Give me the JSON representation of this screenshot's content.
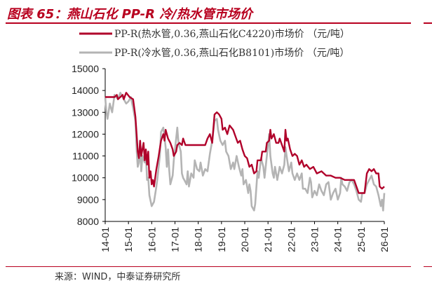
{
  "header": {
    "title": "图表 65：燕山石化 PP-R 冷/热水管市场价"
  },
  "footer": {
    "source": "来源：WIND，中泰证券研究所"
  },
  "chart_data": {
    "type": "line",
    "title": "图表 65：燕山石化 PP-R 冷/热水管市场价",
    "xlabel": "",
    "ylabel": "",
    "xlim": [
      2014.0,
      2026.0
    ],
    "ylim": [
      8000,
      15000
    ],
    "y_ticks": [
      8000,
      9000,
      10000,
      11000,
      12000,
      13000,
      14000,
      15000
    ],
    "x_ticks": [
      "14-01",
      "15-01",
      "16-01",
      "17-01",
      "18-01",
      "19-01",
      "20-01",
      "21-01",
      "22-01",
      "23-01",
      "24-01",
      "25-01",
      "26-01"
    ],
    "grid": false,
    "legend_position": "top",
    "series": [
      {
        "name": "PP-R(热水管,0.36,燕山石化C4220)市场价 （元/吨）",
        "color": "#b0002a",
        "points": [
          [
            2014.0,
            13700
          ],
          [
            2014.4,
            13700
          ],
          [
            2014.5,
            13800
          ],
          [
            2014.55,
            13600
          ],
          [
            2014.75,
            13800
          ],
          [
            2014.8,
            13600
          ],
          [
            2014.9,
            13900
          ],
          [
            2015.05,
            13700
          ],
          [
            2015.2,
            13600
          ],
          [
            2015.3,
            12800
          ],
          [
            2015.35,
            12000
          ],
          [
            2015.4,
            11200
          ],
          [
            2015.45,
            10900
          ],
          [
            2015.5,
            11700
          ],
          [
            2015.55,
            11000
          ],
          [
            2015.65,
            11600
          ],
          [
            2015.7,
            10800
          ],
          [
            2015.75,
            11300
          ],
          [
            2015.8,
            10600
          ],
          [
            2015.85,
            11200
          ],
          [
            2015.9,
            10000
          ],
          [
            2015.95,
            10300
          ],
          [
            2016.0,
            9700
          ],
          [
            2016.05,
            9900
          ],
          [
            2016.1,
            9600
          ],
          [
            2016.2,
            10400
          ],
          [
            2016.3,
            11000
          ],
          [
            2016.4,
            11700
          ],
          [
            2016.5,
            12000
          ],
          [
            2016.55,
            11700
          ],
          [
            2016.6,
            12200
          ],
          [
            2016.7,
            11800
          ],
          [
            2016.8,
            11600
          ],
          [
            2016.9,
            11300
          ],
          [
            2016.95,
            11000
          ],
          [
            2017.05,
            11200
          ],
          [
            2017.1,
            11500
          ],
          [
            2017.2,
            11600
          ],
          [
            2017.3,
            11500
          ],
          [
            2017.35,
            11800
          ],
          [
            2017.45,
            11500
          ],
          [
            2017.6,
            11500
          ],
          [
            2018.3,
            11500
          ],
          [
            2018.4,
            11800
          ],
          [
            2018.5,
            12000
          ],
          [
            2018.6,
            11600
          ],
          [
            2018.7,
            12900
          ],
          [
            2018.8,
            13000
          ],
          [
            2018.9,
            12900
          ],
          [
            2019.0,
            12700
          ],
          [
            2019.05,
            12200
          ],
          [
            2019.15,
            12300
          ],
          [
            2019.25,
            12000
          ],
          [
            2019.35,
            12400
          ],
          [
            2019.5,
            12200
          ],
          [
            2019.6,
            11900
          ],
          [
            2019.7,
            11600
          ],
          [
            2019.8,
            11700
          ],
          [
            2019.9,
            11300
          ],
          [
            2020.0,
            11000
          ],
          [
            2020.1,
            10900
          ],
          [
            2020.2,
            10500
          ],
          [
            2020.3,
            10600
          ],
          [
            2020.4,
            10200
          ],
          [
            2020.5,
            10300
          ],
          [
            2020.55,
            10800
          ],
          [
            2020.7,
            10800
          ],
          [
            2020.75,
            11200
          ],
          [
            2020.9,
            11200
          ],
          [
            2020.95,
            11600
          ],
          [
            2021.05,
            11700
          ],
          [
            2021.1,
            12200
          ],
          [
            2021.15,
            11800
          ],
          [
            2021.25,
            12000
          ],
          [
            2021.35,
            11600
          ],
          [
            2021.45,
            11600
          ],
          [
            2021.5,
            11800
          ],
          [
            2021.6,
            11500
          ],
          [
            2021.7,
            11200
          ],
          [
            2021.75,
            12200
          ],
          [
            2021.8,
            11700
          ],
          [
            2021.85,
            11800
          ],
          [
            2021.95,
            11300
          ],
          [
            2022.05,
            11000
          ],
          [
            2022.15,
            11100
          ],
          [
            2022.25,
            11000
          ],
          [
            2022.35,
            10600
          ],
          [
            2022.45,
            10800
          ],
          [
            2022.55,
            10500
          ],
          [
            2022.65,
            10600
          ],
          [
            2022.8,
            10400
          ],
          [
            2022.95,
            10500
          ],
          [
            2023.1,
            10200
          ],
          [
            2023.3,
            10300
          ],
          [
            2023.5,
            10100
          ],
          [
            2023.7,
            10100
          ],
          [
            2023.9,
            10000
          ],
          [
            2024.1,
            10000
          ],
          [
            2024.3,
            9900
          ],
          [
            2024.5,
            9900
          ],
          [
            2024.7,
            9900
          ],
          [
            2024.8,
            9600
          ],
          [
            2024.9,
            9300
          ],
          [
            2025.15,
            9300
          ],
          [
            2025.25,
            10200
          ],
          [
            2025.35,
            10400
          ],
          [
            2025.45,
            10300
          ],
          [
            2025.55,
            10400
          ],
          [
            2025.65,
            10200
          ],
          [
            2025.75,
            10200
          ],
          [
            2025.8,
            9600
          ],
          [
            2025.9,
            9500
          ],
          [
            2026.0,
            9600
          ]
        ]
      },
      {
        "name": "PP-R(冷水管,0.36,燕山石化B8101)市场价 （元/吨）",
        "color": "#b4b4b4",
        "points": [
          [
            2014.0,
            13700
          ],
          [
            2014.05,
            13000
          ],
          [
            2014.1,
            12700
          ],
          [
            2014.2,
            13400
          ],
          [
            2014.3,
            13000
          ],
          [
            2014.4,
            13800
          ],
          [
            2014.55,
            13600
          ],
          [
            2014.65,
            13900
          ],
          [
            2014.8,
            13600
          ],
          [
            2014.9,
            13400
          ],
          [
            2015.0,
            13500
          ],
          [
            2015.1,
            13700
          ],
          [
            2015.2,
            13200
          ],
          [
            2015.3,
            12600
          ],
          [
            2015.35,
            11300
          ],
          [
            2015.4,
            10500
          ],
          [
            2015.45,
            10700
          ],
          [
            2015.5,
            11700
          ],
          [
            2015.55,
            10300
          ],
          [
            2015.6,
            11000
          ],
          [
            2015.7,
            10700
          ],
          [
            2015.75,
            11100
          ],
          [
            2015.8,
            9900
          ],
          [
            2015.85,
            10000
          ],
          [
            2015.9,
            9200
          ],
          [
            2016.0,
            8700
          ],
          [
            2016.1,
            8900
          ],
          [
            2016.2,
            9600
          ],
          [
            2016.25,
            10000
          ],
          [
            2016.35,
            11000
          ],
          [
            2016.4,
            12100
          ],
          [
            2016.5,
            12300
          ],
          [
            2016.6,
            11400
          ],
          [
            2016.65,
            10500
          ],
          [
            2016.7,
            11300
          ],
          [
            2016.75,
            10400
          ],
          [
            2016.8,
            9700
          ],
          [
            2016.9,
            10100
          ],
          [
            2016.95,
            10800
          ],
          [
            2017.05,
            11800
          ],
          [
            2017.1,
            12300
          ],
          [
            2017.15,
            11600
          ],
          [
            2017.25,
            11200
          ],
          [
            2017.3,
            10200
          ],
          [
            2017.35,
            10000
          ],
          [
            2017.4,
            9900
          ],
          [
            2017.5,
            9700
          ],
          [
            2017.55,
            10300
          ],
          [
            2017.6,
            9600
          ],
          [
            2017.7,
            10200
          ],
          [
            2017.8,
            10000
          ],
          [
            2017.85,
            10800
          ],
          [
            2017.95,
            10400
          ],
          [
            2018.05,
            10300
          ],
          [
            2018.1,
            10700
          ],
          [
            2018.2,
            10100
          ],
          [
            2018.3,
            10400
          ],
          [
            2018.4,
            10300
          ],
          [
            2018.5,
            11100
          ],
          [
            2018.6,
            11700
          ],
          [
            2018.7,
            12600
          ],
          [
            2018.8,
            12700
          ],
          [
            2018.85,
            12200
          ],
          [
            2018.95,
            11700
          ],
          [
            2019.05,
            11500
          ],
          [
            2019.15,
            11700
          ],
          [
            2019.2,
            11200
          ],
          [
            2019.3,
            11000
          ],
          [
            2019.4,
            10400
          ],
          [
            2019.5,
            10700
          ],
          [
            2019.55,
            10400
          ],
          [
            2019.65,
            11000
          ],
          [
            2019.75,
            10500
          ],
          [
            2019.85,
            10100
          ],
          [
            2019.9,
            10400
          ],
          [
            2019.95,
            9700
          ],
          [
            2020.05,
            9900
          ],
          [
            2020.15,
            9300
          ],
          [
            2020.2,
            9700
          ],
          [
            2020.25,
            9400
          ],
          [
            2020.3,
            8700
          ],
          [
            2020.4,
            8500
          ],
          [
            2020.45,
            8800
          ],
          [
            2020.55,
            10300
          ],
          [
            2020.6,
            10000
          ],
          [
            2020.7,
            10900
          ],
          [
            2020.8,
            10500
          ],
          [
            2020.85,
            10000
          ],
          [
            2020.95,
            11000
          ],
          [
            2021.05,
            12000
          ],
          [
            2021.1,
            11000
          ],
          [
            2021.2,
            10200
          ],
          [
            2021.25,
            10000
          ],
          [
            2021.3,
            10500
          ],
          [
            2021.4,
            9900
          ],
          [
            2021.5,
            10500
          ],
          [
            2021.6,
            10200
          ],
          [
            2021.7,
            10600
          ],
          [
            2021.75,
            11400
          ],
          [
            2021.8,
            11000
          ],
          [
            2021.9,
            10300
          ],
          [
            2022.0,
            10700
          ],
          [
            2022.05,
            10200
          ],
          [
            2022.15,
            9900
          ],
          [
            2022.25,
            10200
          ],
          [
            2022.35,
            9900
          ],
          [
            2022.45,
            10200
          ],
          [
            2022.5,
            9500
          ],
          [
            2022.6,
            9500
          ],
          [
            2022.7,
            9300
          ],
          [
            2022.8,
            10000
          ],
          [
            2022.85,
            9800
          ],
          [
            2022.9,
            9100
          ],
          [
            2023.0,
            9400
          ],
          [
            2023.1,
            9200
          ],
          [
            2023.2,
            9700
          ],
          [
            2023.3,
            9400
          ],
          [
            2023.4,
            9200
          ],
          [
            2023.5,
            9700
          ],
          [
            2023.6,
            9800
          ],
          [
            2023.7,
            9000
          ],
          [
            2023.8,
            9300
          ],
          [
            2023.9,
            9500
          ],
          [
            2024.0,
            9000
          ],
          [
            2024.1,
            9300
          ],
          [
            2024.15,
            10000
          ],
          [
            2024.2,
            9700
          ],
          [
            2024.3,
            9600
          ],
          [
            2024.4,
            9400
          ],
          [
            2024.5,
            9800
          ],
          [
            2024.6,
            9900
          ],
          [
            2024.7,
            9700
          ],
          [
            2024.8,
            9400
          ],
          [
            2024.9,
            9000
          ],
          [
            2025.0,
            8900
          ],
          [
            2025.05,
            9300
          ],
          [
            2025.15,
            9300
          ],
          [
            2025.25,
            9700
          ],
          [
            2025.35,
            9900
          ],
          [
            2025.45,
            10100
          ],
          [
            2025.55,
            9700
          ],
          [
            2025.65,
            9600
          ],
          [
            2025.75,
            9200
          ],
          [
            2025.85,
            8700
          ],
          [
            2025.9,
            9000
          ],
          [
            2025.95,
            8500
          ],
          [
            2026.0,
            9300
          ]
        ]
      }
    ]
  }
}
